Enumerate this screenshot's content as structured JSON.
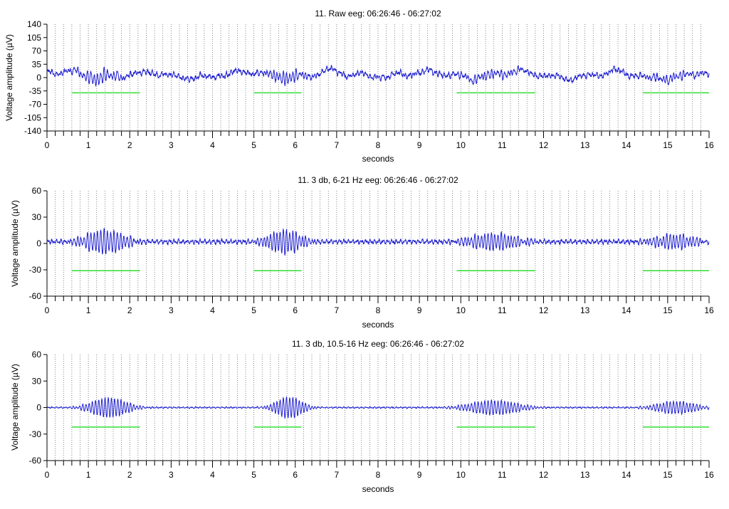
{
  "chart_data": [
    {
      "type": "line",
      "title": "11. Raw eeg: 06:26:46 - 06:27:02",
      "xlabel": "seconds",
      "ylabel": "Voltage amplitude (µV)",
      "xlim": [
        0,
        16
      ],
      "ylim": [
        -140,
        140
      ],
      "xticks": [
        0,
        1,
        2,
        3,
        4,
        5,
        6,
        7,
        8,
        9,
        10,
        11,
        12,
        13,
        14,
        15,
        16
      ],
      "yticks": [
        -140,
        -105,
        -70,
        -35,
        0,
        35,
        70,
        105,
        140
      ],
      "grid": "vertical dotted every 0.2 s",
      "signal": {
        "kind": "raw",
        "baseline": 8,
        "noise_amplitude": 8,
        "wander_amplitude": 10,
        "bursts": [
          {
            "center": 1.25,
            "width": 0.55,
            "amplitude": 14,
            "freq": 12.5
          },
          {
            "center": 5.8,
            "width": 0.45,
            "amplitude": 14,
            "freq": 13
          },
          {
            "center": 10.7,
            "width": 0.7,
            "amplitude": 8,
            "freq": 12.5
          },
          {
            "center": 15.1,
            "width": 0.55,
            "amplitude": 9,
            "freq": 12.5
          }
        ]
      },
      "color": "#1f1fd0",
      "markers": {
        "y": -40,
        "color": "#33dd33",
        "segments": [
          [
            0.6,
            2.25
          ],
          [
            5.0,
            6.15
          ],
          [
            9.9,
            11.8
          ],
          [
            14.4,
            16.0
          ]
        ]
      }
    },
    {
      "type": "line",
      "title": "11. 3 db, 6-21 Hz eeg: 06:26:46 - 06:27:02",
      "xlabel": "seconds",
      "ylabel": "Voltage amplitude (µV)",
      "xlim": [
        0,
        16
      ],
      "ylim": [
        -60,
        60
      ],
      "xticks": [
        0,
        1,
        2,
        3,
        4,
        5,
        6,
        7,
        8,
        9,
        10,
        11,
        12,
        13,
        14,
        15,
        16
      ],
      "yticks": [
        -60,
        -30,
        0,
        30,
        60
      ],
      "grid": "vertical dotted every 0.2 s",
      "signal": {
        "kind": "band",
        "baseline": 2,
        "noise_amplitude": 3,
        "wander_amplitude": 0,
        "bursts": [
          {
            "center": 1.4,
            "width": 0.6,
            "amplitude": 13,
            "freq": 12.5
          },
          {
            "center": 5.75,
            "width": 0.5,
            "amplitude": 13,
            "freq": 13
          },
          {
            "center": 10.8,
            "width": 0.75,
            "amplitude": 9,
            "freq": 12.5
          },
          {
            "center": 15.15,
            "width": 0.6,
            "amplitude": 8,
            "freq": 12.5
          }
        ]
      },
      "color": "#1f1fd0",
      "markers": {
        "y": -31,
        "color": "#33dd33",
        "segments": [
          [
            0.6,
            2.25
          ],
          [
            5.0,
            6.15
          ],
          [
            9.9,
            11.8
          ],
          [
            14.4,
            16.0
          ]
        ]
      }
    },
    {
      "type": "line",
      "title": "11. 3 db, 10.5-16 Hz eeg: 06:26:46 - 06:27:02",
      "xlabel": "seconds",
      "ylabel": "Voltage amplitude (µV)",
      "xlim": [
        0,
        16
      ],
      "ylim": [
        -60,
        60
      ],
      "xticks": [
        0,
        1,
        2,
        3,
        4,
        5,
        6,
        7,
        8,
        9,
        10,
        11,
        12,
        13,
        14,
        15,
        16
      ],
      "yticks": [
        -60,
        -30,
        0,
        30,
        60
      ],
      "grid": "vertical dotted every 0.2 s",
      "signal": {
        "kind": "band",
        "baseline": 0,
        "noise_amplitude": 1,
        "wander_amplitude": 0,
        "bursts": [
          {
            "center": 1.5,
            "width": 0.55,
            "amplitude": 11,
            "freq": 13
          },
          {
            "center": 5.85,
            "width": 0.4,
            "amplitude": 12,
            "freq": 13
          },
          {
            "center": 10.8,
            "width": 0.75,
            "amplitude": 8,
            "freq": 12.5
          },
          {
            "center": 15.2,
            "width": 0.6,
            "amplitude": 7,
            "freq": 12.5
          }
        ]
      },
      "color": "#1f1fd0",
      "markers": {
        "y": -22,
        "color": "#33dd33",
        "segments": [
          [
            0.6,
            2.25
          ],
          [
            5.0,
            6.15
          ],
          [
            9.9,
            11.8
          ],
          [
            14.4,
            16.0
          ]
        ]
      }
    }
  ]
}
